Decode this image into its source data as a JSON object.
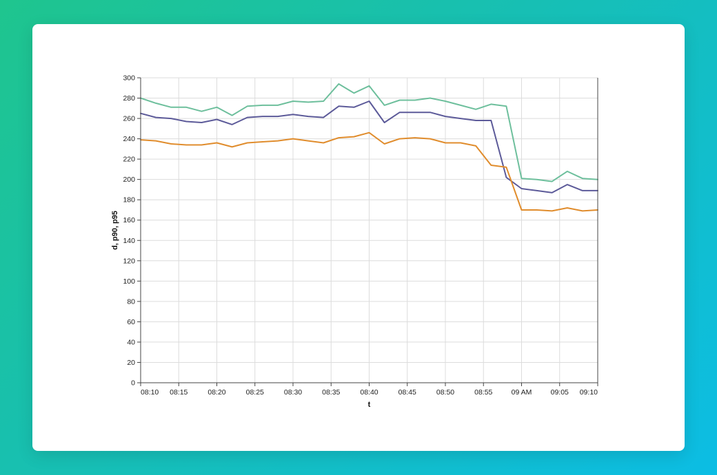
{
  "chart_data": {
    "type": "line",
    "xlabel": "t",
    "ylabel": "d, p90, p95",
    "ylim": [
      0,
      300
    ],
    "grid": true,
    "y_ticks": [
      0,
      20,
      40,
      60,
      80,
      100,
      120,
      140,
      160,
      180,
      200,
      220,
      240,
      260,
      280,
      300
    ],
    "x_ticks": [
      "08:10",
      "08:15",
      "08:20",
      "08:25",
      "08:30",
      "08:35",
      "08:40",
      "08:45",
      "08:50",
      "08:55",
      "09 AM",
      "09:05",
      "09:10"
    ],
    "x": [
      "08:10",
      "08:12",
      "08:14",
      "08:16",
      "08:18",
      "08:20",
      "08:22",
      "08:24",
      "08:26",
      "08:28",
      "08:30",
      "08:32",
      "08:34",
      "08:36",
      "08:38",
      "08:40",
      "08:42",
      "08:44",
      "08:46",
      "08:48",
      "08:50",
      "08:52",
      "08:54",
      "08:56",
      "08:58",
      "09:00",
      "09:02",
      "09:04",
      "09:06",
      "09:08",
      "09:10"
    ],
    "series": [
      {
        "color": "#6dbf9c",
        "values": [
          280,
          275,
          271,
          271,
          267,
          271,
          263,
          272,
          273,
          273,
          277,
          276,
          277,
          294,
          285,
          292,
          273,
          278,
          278,
          280,
          277,
          273,
          269,
          274,
          272,
          201,
          200,
          198,
          208,
          201,
          200
        ]
      },
      {
        "color": "#5c5a99",
        "values": [
          265,
          261,
          260,
          257,
          256,
          259,
          254,
          261,
          262,
          262,
          264,
          262,
          261,
          272,
          271,
          277,
          256,
          266,
          266,
          266,
          262,
          260,
          258,
          258,
          202,
          191,
          189,
          187,
          195,
          189,
          189
        ]
      },
      {
        "color": "#e08c2c",
        "values": [
          239,
          238,
          235,
          234,
          234,
          236,
          232,
          236,
          237,
          238,
          240,
          238,
          236,
          241,
          242,
          246,
          235,
          240,
          241,
          240,
          236,
          236,
          233,
          214,
          212,
          170,
          170,
          169,
          172,
          169,
          170
        ]
      }
    ]
  }
}
